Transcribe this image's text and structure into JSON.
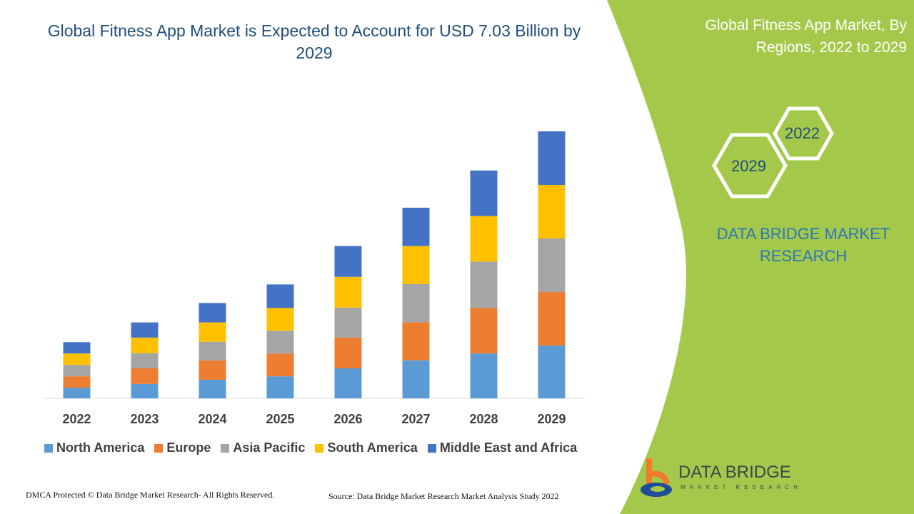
{
  "chart_data": {
    "type": "bar",
    "stacked": true,
    "title": "Global Fitness App Market is Expected to Account for USD 7.03 Billion by 2029",
    "categories": [
      "2022",
      "2023",
      "2024",
      "2025",
      "2026",
      "2027",
      "2028",
      "2029"
    ],
    "series": [
      {
        "name": "North America",
        "color": "#5b9bd5",
        "values": [
          0.28,
          0.38,
          0.49,
          0.58,
          0.79,
          1.0,
          1.18,
          1.39
        ]
      },
      {
        "name": "Europe",
        "color": "#ed7d31",
        "values": [
          0.3,
          0.41,
          0.51,
          0.6,
          0.81,
          1.0,
          1.2,
          1.41
        ]
      },
      {
        "name": "Asia Pacific",
        "color": "#a5a5a5",
        "values": [
          0.3,
          0.4,
          0.49,
          0.6,
          0.79,
          1.01,
          1.22,
          1.41
        ]
      },
      {
        "name": "South America",
        "color": "#ffc000",
        "values": [
          0.3,
          0.41,
          0.51,
          0.6,
          0.81,
          1.0,
          1.2,
          1.41
        ]
      },
      {
        "name": "Middle East and Africa",
        "color": "#4472c4",
        "values": [
          0.3,
          0.4,
          0.51,
          0.62,
          0.81,
          1.01,
          1.2,
          1.41
        ]
      }
    ],
    "grid": false,
    "legend_position": "bottom",
    "ylim": [
      0,
      7.03
    ]
  },
  "side": {
    "title": "Global Fitness App Market, By Regions, 2022 to 2029",
    "hex_years": [
      "2022",
      "2029"
    ],
    "brand": "DATA BRIDGE MARKET RESEARCH",
    "panel_color": "#a4c94a"
  },
  "footer": {
    "left": "DMCA Protected © Data Bridge Market Research- All Rights Reserved.",
    "right": "Source: Data Bridge Market Research Market Analysis Study 2022"
  },
  "logo": {
    "name": "DATA BRIDGE",
    "sub": "MARKET RESEARCH"
  }
}
